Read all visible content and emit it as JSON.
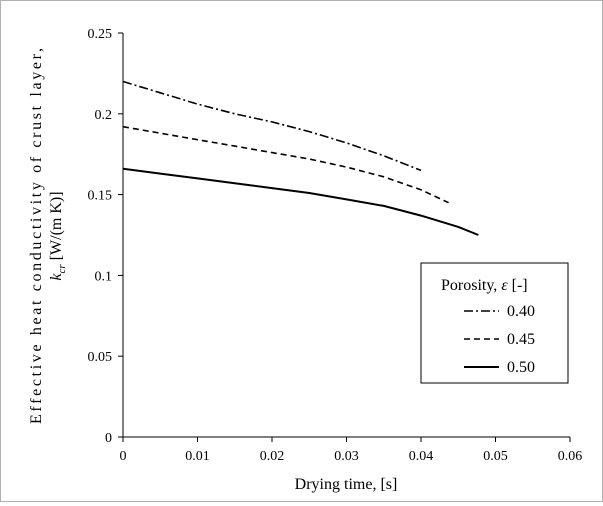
{
  "chart_data": {
    "type": "line",
    "ylabel_line1": "Effective heat conductivity of crust layer,",
    "ylabel_sym": "k",
    "ylabel_sub": "cr",
    "ylabel_unit": " [W/(m K)]",
    "xlabel": "Drying time, [s]",
    "xlim": [
      0,
      0.06
    ],
    "ylim": [
      0,
      0.25
    ],
    "xticks": [
      "0",
      "0.01",
      "0.02",
      "0.03",
      "0.04",
      "0.05",
      "0.06"
    ],
    "xtick_values": [
      0,
      0.01,
      0.02,
      0.03,
      0.04,
      0.05,
      0.06
    ],
    "yticks": [
      "0",
      "0.05",
      "0.1",
      "0.15",
      "0.2",
      "0.25"
    ],
    "ytick_values": [
      0,
      0.05,
      0.1,
      0.15,
      0.2,
      0.25
    ],
    "grid": false,
    "legend": {
      "placement": "right",
      "title_prefix": "Porosity, ",
      "title_symbol": "ε",
      "title_suffix": " [-]"
    },
    "series": [
      {
        "name": "0.40",
        "style": "dash-dot",
        "color": "#000000",
        "x": [
          0,
          0.005,
          0.01,
          0.015,
          0.02,
          0.025,
          0.03,
          0.035,
          0.04
        ],
        "y": [
          0.22,
          0.213,
          0.206,
          0.2,
          0.195,
          0.189,
          0.182,
          0.174,
          0.165
        ]
      },
      {
        "name": "0.45",
        "style": "dash",
        "color": "#000000",
        "x": [
          0,
          0.005,
          0.01,
          0.015,
          0.02,
          0.025,
          0.03,
          0.035,
          0.04,
          0.0437
        ],
        "y": [
          0.192,
          0.188,
          0.184,
          0.18,
          0.176,
          0.172,
          0.167,
          0.161,
          0.153,
          0.145
        ]
      },
      {
        "name": "0.50",
        "style": "solid",
        "color": "#000000",
        "x": [
          0,
          0.005,
          0.01,
          0.015,
          0.02,
          0.025,
          0.03,
          0.035,
          0.04,
          0.045,
          0.0477
        ],
        "y": [
          0.166,
          0.163,
          0.16,
          0.157,
          0.154,
          0.151,
          0.147,
          0.143,
          0.137,
          0.13,
          0.125
        ]
      }
    ]
  }
}
